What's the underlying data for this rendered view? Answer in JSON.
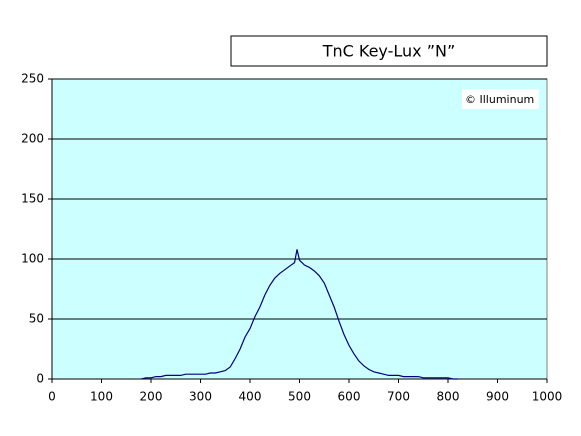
{
  "chart_data": {
    "type": "line",
    "title": "TnC Key-Lux ”N”",
    "annotation": "© Illuminum",
    "x": [
      180,
      190,
      200,
      210,
      220,
      230,
      240,
      250,
      260,
      270,
      280,
      290,
      300,
      310,
      320,
      330,
      340,
      350,
      360,
      370,
      380,
      390,
      400,
      410,
      420,
      430,
      440,
      450,
      460,
      470,
      480,
      490,
      495,
      500,
      510,
      520,
      530,
      540,
      550,
      560,
      570,
      580,
      590,
      600,
      610,
      620,
      630,
      640,
      650,
      660,
      670,
      680,
      690,
      700,
      710,
      720,
      730,
      740,
      750,
      760,
      770,
      780,
      790,
      800,
      810,
      820
    ],
    "series": [
      {
        "name": "TnC Key-Lux ”N”",
        "color": "#000080",
        "values": [
          0,
          1,
          1,
          2,
          2,
          3,
          3,
          3,
          3,
          4,
          4,
          4,
          4,
          4,
          5,
          5,
          6,
          7,
          10,
          17,
          25,
          35,
          42,
          52,
          60,
          70,
          78,
          84,
          88,
          91,
          94,
          97,
          108,
          99,
          95,
          93,
          90,
          86,
          80,
          70,
          60,
          48,
          37,
          28,
          21,
          15,
          11,
          8,
          6,
          5,
          4,
          3,
          3,
          3,
          2,
          2,
          2,
          2,
          1,
          1,
          1,
          1,
          1,
          1,
          0,
          0
        ]
      }
    ],
    "xlim": [
      0,
      1000
    ],
    "xticks": [
      0,
      100,
      200,
      300,
      400,
      500,
      600,
      700,
      800,
      900,
      1000
    ],
    "ylim": [
      0,
      250
    ],
    "yticks": [
      0,
      50,
      100,
      150,
      200,
      250
    ],
    "grid": true,
    "background": "#ccffff"
  }
}
